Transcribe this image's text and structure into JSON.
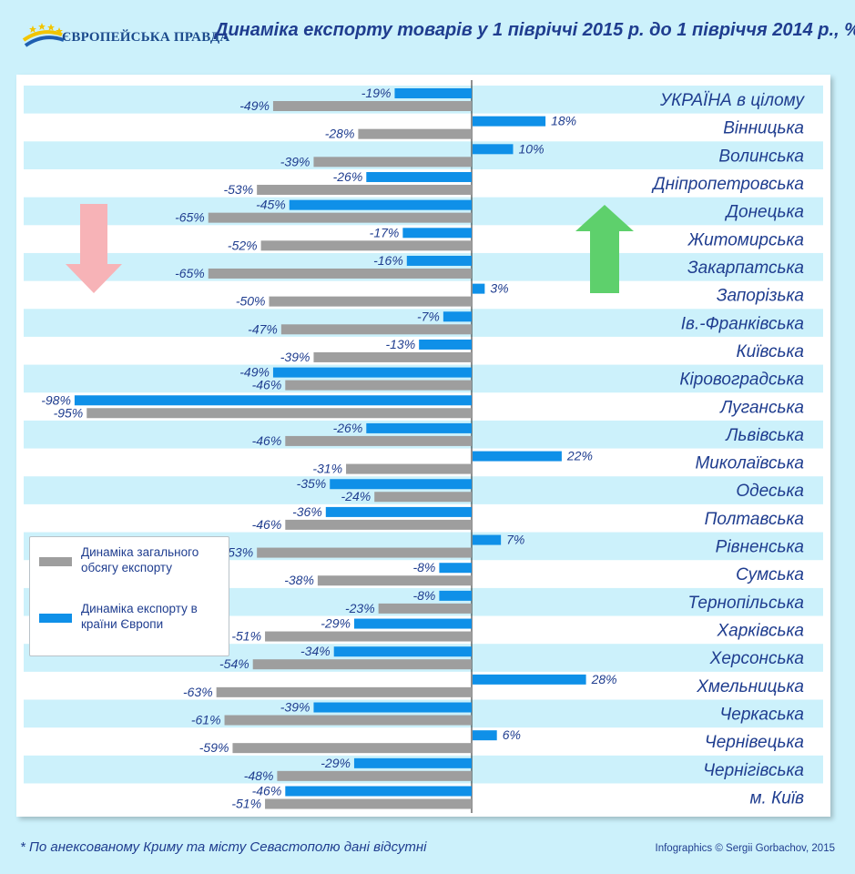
{
  "header": {
    "logo_text": "ЄВРОПЕЙСЬКА ПРАВДА",
    "title": "Динаміка експорту товарів у 1 півріччі 2015 р.  до 1 півріччя 2014 р., % *"
  },
  "footer": {
    "note": "* По анексованому Криму та місту Севастополю дані відсутні",
    "credit": "Infographics © Sergii Gorbachov, 2015"
  },
  "legend": {
    "total_label": "Динаміка загального обсягу експорту",
    "europe_label": "Динаміка експорту в країни Європи"
  },
  "colors": {
    "total": "#9e9e9e",
    "europe": "#0f90e8",
    "label_text": "#1f3d8f",
    "row_band": "#ccf1fb",
    "arrow_down": "#f7b3b7",
    "arrow_up": "#5ed06c"
  },
  "chart_data": {
    "type": "bar",
    "orientation": "horizontal",
    "unit": "%",
    "xlim": [
      -100,
      100
    ],
    "categories": [
      "УКРАЇНА в цілому",
      "Вінницька",
      "Волинська",
      "Дніпропетровська",
      "Донецька",
      "Житомирська",
      "Закарпатська",
      "Запорізька",
      "Ів.-Франківська",
      "Київська",
      "Кіровоградська",
      "Луганська",
      "Львівська",
      "Миколаївська",
      "Одеська",
      "Полтавська",
      "Рівненська",
      "Сумська",
      "Тернопільська",
      "Харківська",
      "Херсонська",
      "Хмельницька",
      "Черкаська",
      "Чернівецька",
      "Чернігівська",
      "м. Київ"
    ],
    "series": [
      {
        "name": "Динаміка експорту в країни Європи",
        "values": [
          -19,
          18,
          10,
          -26,
          -45,
          -17,
          -16,
          3,
          -7,
          -13,
          -49,
          -98,
          -26,
          22,
          -35,
          -36,
          7,
          -8,
          -8,
          -29,
          -34,
          28,
          -39,
          6,
          -29,
          -46
        ]
      },
      {
        "name": "Динаміка загального обсягу експорту",
        "values": [
          -49,
          -28,
          -39,
          -53,
          -65,
          -52,
          -65,
          -50,
          -47,
          -39,
          -46,
          -95,
          -46,
          -31,
          -24,
          -46,
          -53,
          -38,
          -23,
          -51,
          -54,
          -63,
          -61,
          -59,
          -48,
          -51
        ]
      }
    ]
  }
}
